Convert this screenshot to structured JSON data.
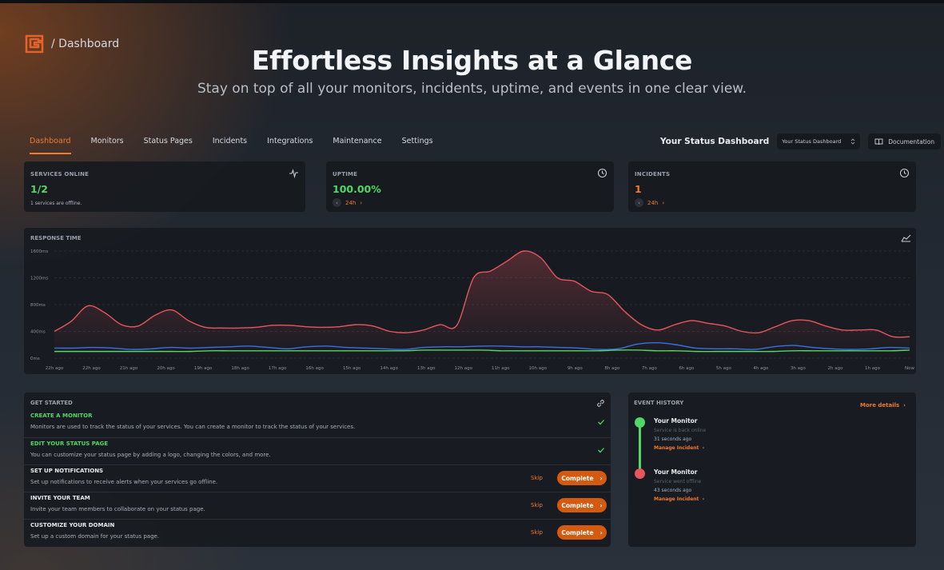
{
  "header": {
    "breadcrumb": "/ Dashboard",
    "title": "Effortless Insights at a Glance",
    "subtitle": "Stay on top of all your monitors, incidents, uptime, and events in one clear view."
  },
  "nav": {
    "tabs": [
      {
        "label": "Dashboard",
        "active": true
      },
      {
        "label": "Monitors",
        "active": false
      },
      {
        "label": "Status Pages",
        "active": false
      },
      {
        "label": "Incidents",
        "active": false
      },
      {
        "label": "Integrations",
        "active": false
      },
      {
        "label": "Maintenance",
        "active": false
      },
      {
        "label": "Settings",
        "active": false
      }
    ],
    "dashboard_title": "Your Status Dashboard",
    "dashboard_select": "Your Status Dashboard",
    "documentation": "Documentation"
  },
  "stats": {
    "services": {
      "label": "SERVICES ONLINE",
      "value": "1/2",
      "note": "1 services are offline.",
      "icon": "activity-icon"
    },
    "uptime": {
      "label": "UPTIME",
      "value": "100.00%",
      "range": "24h",
      "icon": "history-icon"
    },
    "incidents": {
      "label": "INCIDENTS",
      "value": "1",
      "range": "24h",
      "icon": "history-icon"
    }
  },
  "chart_data": {
    "type": "line",
    "title": "RESPONSE TIME",
    "x_labels": [
      "22h ago",
      "22h ago",
      "21h ago",
      "20h ago",
      "19h ago",
      "18h ago",
      "17h ago",
      "16h ago",
      "15h ago",
      "14h ago",
      "13h ago",
      "12h ago",
      "11h ago",
      "10h ago",
      "9h ago",
      "8h ago",
      "7h ago",
      "6h ago",
      "5h ago",
      "4h ago",
      "3h ago",
      "2h ago",
      "1h ago",
      "Now"
    ],
    "y_ticks": [
      "0ms",
      "400ms",
      "800ms",
      "1200ms",
      "1600ms"
    ],
    "ylim": [
      0,
      1600
    ],
    "grid": true,
    "series": [
      {
        "color": "#e8555e",
        "fill": true,
        "values": [
          400,
          550,
          780,
          680,
          500,
          480,
          640,
          720,
          560,
          460,
          450,
          450,
          460,
          490,
          490,
          470,
          460,
          470,
          500,
          480,
          400,
          380,
          420,
          500,
          490,
          1200,
          1300,
          1450,
          1600,
          1500,
          1200,
          1150,
          1000,
          950,
          700,
          500,
          420,
          500,
          560,
          520,
          480,
          400,
          380,
          470,
          560,
          560,
          480,
          420,
          420,
          420,
          320,
          320
        ]
      },
      {
        "color": "#3b6fe0",
        "fill": false,
        "values": [
          150,
          150,
          160,
          150,
          130,
          140,
          160,
          150,
          160,
          170,
          180,
          160,
          140,
          170,
          180,
          160,
          150,
          140,
          130,
          160,
          170,
          170,
          180,
          180,
          170,
          170,
          160,
          150,
          130,
          140,
          210,
          230,
          200,
          150,
          140,
          140,
          130,
          170,
          190,
          160,
          140,
          130,
          140,
          160,
          150
        ]
      },
      {
        "color": "#4fd865",
        "fill": false,
        "values": [
          100,
          100,
          100,
          100,
          100,
          100,
          100,
          100,
          110,
          110,
          110,
          110,
          110,
          110,
          110,
          110,
          110,
          110,
          110,
          120,
          120,
          120,
          120,
          110,
          110,
          110,
          110,
          110,
          110,
          120,
          120,
          110,
          110,
          100,
          100,
          100,
          100,
          100,
          110,
          110,
          110,
          110,
          110,
          110,
          120
        ]
      }
    ]
  },
  "get_started": {
    "title": "GET STARTED",
    "items": [
      {
        "title": "CREATE A MONITOR",
        "desc": "Monitors are used to track the status of your services. You can create a monitor to track the status of your services.",
        "done": true
      },
      {
        "title": "EDIT YOUR STATUS PAGE",
        "desc": "You can customize your status page by adding a logo, changing the colors, and more.",
        "done": true
      },
      {
        "title": "SET UP NOTIFICATIONS",
        "desc": "Set up notifications to receive alerts when your services go offline.",
        "done": false,
        "skip": "Skip",
        "complete": "Complete"
      },
      {
        "title": "INVITE YOUR TEAM",
        "desc": "Invite your team members to collaborate on your status page.",
        "done": false,
        "skip": "Skip",
        "complete": "Complete"
      },
      {
        "title": "CUSTOMIZE YOUR DOMAIN",
        "desc": "Set up a custom domain for your status page.",
        "done": false,
        "skip": "Skip",
        "complete": "Complete"
      }
    ]
  },
  "events": {
    "title": "EVENT HISTORY",
    "more": "More details",
    "items": [
      {
        "name": "Your Monitor",
        "status": "Service is back online",
        "time": "31 seconds ago",
        "link": "Manage Incident",
        "color": "#4fd865"
      },
      {
        "name": "Your Monitor",
        "status": "Service went offline",
        "time": "43 seconds ago",
        "link": "Manage Incident",
        "color": "#e8555e"
      }
    ]
  }
}
